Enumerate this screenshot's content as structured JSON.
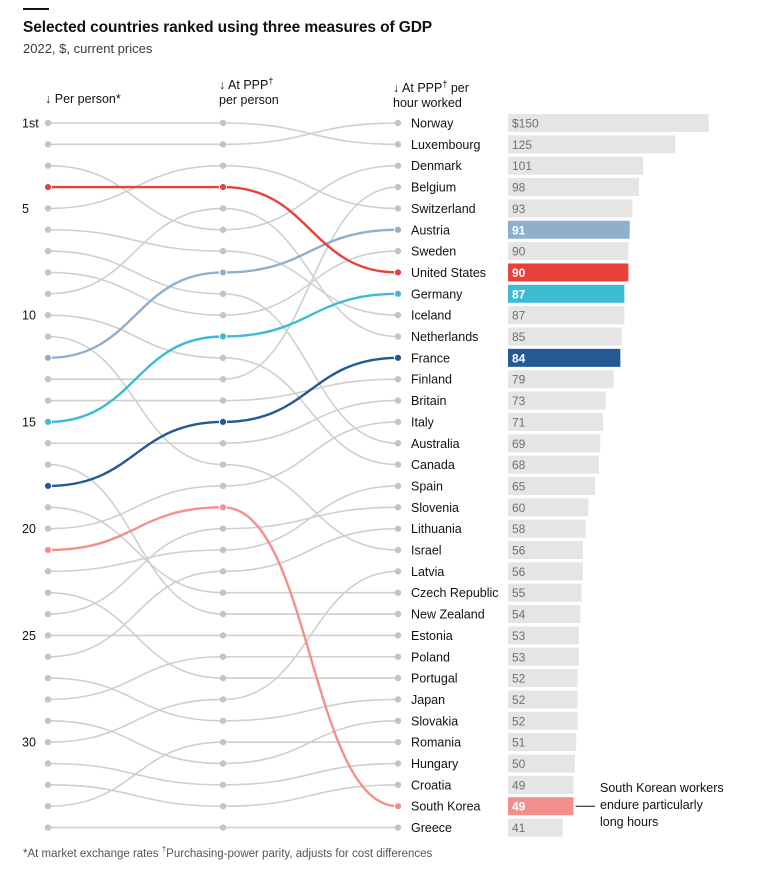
{
  "title": "Selected countries ranked using three measures of GDP",
  "subtitle": "2022, $, current prices",
  "columns": {
    "col1": {
      "arrow": "↓",
      "label": "Per person",
      "mark": "*"
    },
    "col2": {
      "arrow": "↓",
      "label1": "At PPP",
      "mark": "†",
      "label2": "per person"
    },
    "col3": {
      "arrow": "↓",
      "label1": "At PPP",
      "mark": "†",
      "label1b": " per",
      "label2": "hour worked"
    }
  },
  "footnote": {
    "a": "*At market exchange rates ",
    "mark": "†",
    "b": "Purchasing-power parity, adjusts for cost differences"
  },
  "annotation": {
    "line1": "South Korean workers",
    "line2": "endure particularly",
    "line3": "long hours"
  },
  "colors": {
    "grey_line": "#cfcfcf",
    "grey_dot": "#c4c4c4",
    "grey_bar": "#e5e5e5",
    "bar_text": "#707070",
    "red": "#e8413c",
    "light_blue": "#8fb0cd",
    "cyan": "#3ebbd2",
    "dark_blue": "#245994",
    "pink": "#f4908b"
  },
  "chart_data": {
    "type": "slope-rank",
    "title": "Selected countries ranked using three measures of GDP",
    "rank_tick_labels": [
      "1st",
      "5",
      "10",
      "15",
      "20",
      "25",
      "30"
    ],
    "rank_ticks": [
      1,
      5,
      10,
      15,
      20,
      25,
      30
    ],
    "bar_series_name": "GDP at PPP per hour worked ($)",
    "bar_max": 160,
    "first_value_prefix": "$",
    "countries": [
      {
        "name": "Norway",
        "rank_per_person": 2,
        "rank_ppp_per_person": 2,
        "rank_ppp_per_hour": 1,
        "value_ppp_per_hour": 150
      },
      {
        "name": "Luxembourg",
        "rank_per_person": 1,
        "rank_ppp_per_person": 1,
        "rank_ppp_per_hour": 2,
        "value_ppp_per_hour": 125
      },
      {
        "name": "Denmark",
        "rank_per_person": 3,
        "rank_ppp_per_person": 6,
        "rank_ppp_per_hour": 3,
        "value_ppp_per_hour": 101
      },
      {
        "name": "Belgium",
        "rank_per_person": 13,
        "rank_ppp_per_person": 13,
        "rank_ppp_per_hour": 4,
        "value_ppp_per_hour": 98
      },
      {
        "name": "Switzerland",
        "rank_per_person": 5,
        "rank_ppp_per_person": 3,
        "rank_ppp_per_hour": 5,
        "value_ppp_per_hour": 93
      },
      {
        "name": "Austria",
        "rank_per_person": 12,
        "rank_ppp_per_person": 8,
        "rank_ppp_per_hour": 6,
        "value_ppp_per_hour": 91,
        "highlight": "light_blue"
      },
      {
        "name": "Sweden",
        "rank_per_person": 8,
        "rank_ppp_per_person": 10,
        "rank_ppp_per_hour": 7,
        "value_ppp_per_hour": 90
      },
      {
        "name": "United States",
        "rank_per_person": 4,
        "rank_ppp_per_person": 4,
        "rank_ppp_per_hour": 8,
        "value_ppp_per_hour": 90,
        "highlight": "red"
      },
      {
        "name": "Germany",
        "rank_per_person": 15,
        "rank_ppp_per_person": 11,
        "rank_ppp_per_hour": 9,
        "value_ppp_per_hour": 87,
        "highlight": "cyan"
      },
      {
        "name": "Iceland",
        "rank_per_person": 6,
        "rank_ppp_per_person": 7,
        "rank_ppp_per_hour": 10,
        "value_ppp_per_hour": 87
      },
      {
        "name": "Netherlands",
        "rank_per_person": 9,
        "rank_ppp_per_person": 5,
        "rank_ppp_per_hour": 11,
        "value_ppp_per_hour": 85
      },
      {
        "name": "France",
        "rank_per_person": 18,
        "rank_ppp_per_person": 15,
        "rank_ppp_per_hour": 12,
        "value_ppp_per_hour": 84,
        "highlight": "dark_blue"
      },
      {
        "name": "Finland",
        "rank_per_person": 14,
        "rank_ppp_per_person": 14,
        "rank_ppp_per_hour": 13,
        "value_ppp_per_hour": 79
      },
      {
        "name": "Britain",
        "rank_per_person": 16,
        "rank_ppp_per_person": 16,
        "rank_ppp_per_hour": 14,
        "value_ppp_per_hour": 73
      },
      {
        "name": "Italy",
        "rank_per_person": 20,
        "rank_ppp_per_person": 18,
        "rank_ppp_per_hour": 15,
        "value_ppp_per_hour": 71
      },
      {
        "name": "Australia",
        "rank_per_person": 7,
        "rank_ppp_per_person": 9,
        "rank_ppp_per_hour": 16,
        "value_ppp_per_hour": 69
      },
      {
        "name": "Canada",
        "rank_per_person": 10,
        "rank_ppp_per_person": 12,
        "rank_ppp_per_hour": 17,
        "value_ppp_per_hour": 68
      },
      {
        "name": "Spain",
        "rank_per_person": 22,
        "rank_ppp_per_person": 21,
        "rank_ppp_per_hour": 18,
        "value_ppp_per_hour": 65
      },
      {
        "name": "Slovenia",
        "rank_per_person": 24,
        "rank_ppp_per_person": 20,
        "rank_ppp_per_hour": 19,
        "value_ppp_per_hour": 60
      },
      {
        "name": "Lithuania",
        "rank_per_person": 26,
        "rank_ppp_per_person": 22,
        "rank_ppp_per_hour": 20,
        "value_ppp_per_hour": 58
      },
      {
        "name": "Israel",
        "rank_per_person": 11,
        "rank_ppp_per_person": 17,
        "rank_ppp_per_hour": 21,
        "value_ppp_per_hour": 56
      },
      {
        "name": "Latvia",
        "rank_per_person": 30,
        "rank_ppp_per_person": 28,
        "rank_ppp_per_hour": 22,
        "value_ppp_per_hour": 56
      },
      {
        "name": "Czech Republic",
        "rank_per_person": 19,
        "rank_ppp_per_person": 23,
        "rank_ppp_per_hour": 23,
        "value_ppp_per_hour": 55
      },
      {
        "name": "New Zealand",
        "rank_per_person": 17,
        "rank_ppp_per_person": 24,
        "rank_ppp_per_hour": 24,
        "value_ppp_per_hour": 54
      },
      {
        "name": "Estonia",
        "rank_per_person": 25,
        "rank_ppp_per_person": 25,
        "rank_ppp_per_hour": 25,
        "value_ppp_per_hour": 53
      },
      {
        "name": "Poland",
        "rank_per_person": 28,
        "rank_ppp_per_person": 26,
        "rank_ppp_per_hour": 26,
        "value_ppp_per_hour": 53
      },
      {
        "name": "Portugal",
        "rank_per_person": 23,
        "rank_ppp_per_person": 27,
        "rank_ppp_per_hour": 27,
        "value_ppp_per_hour": 52
      },
      {
        "name": "Japan",
        "rank_per_person": 27,
        "rank_ppp_per_person": 29,
        "rank_ppp_per_hour": 28,
        "value_ppp_per_hour": 52
      },
      {
        "name": "Slovakia",
        "rank_per_person": 29,
        "rank_ppp_per_person": 31,
        "rank_ppp_per_hour": 29,
        "value_ppp_per_hour": 52
      },
      {
        "name": "Romania",
        "rank_per_person": 33,
        "rank_ppp_per_person": 30,
        "rank_ppp_per_hour": 30,
        "value_ppp_per_hour": 51
      },
      {
        "name": "Hungary",
        "rank_per_person": 31,
        "rank_ppp_per_person": 32,
        "rank_ppp_per_hour": 31,
        "value_ppp_per_hour": 50
      },
      {
        "name": "Croatia",
        "rank_per_person": 32,
        "rank_ppp_per_person": 33,
        "rank_ppp_per_hour": 32,
        "value_ppp_per_hour": 49
      },
      {
        "name": "South Korea",
        "rank_per_person": 21,
        "rank_ppp_per_person": 19,
        "rank_ppp_per_hour": 33,
        "value_ppp_per_hour": 49,
        "highlight": "pink"
      },
      {
        "name": "Greece",
        "rank_per_person": 34,
        "rank_ppp_per_person": 34,
        "rank_ppp_per_hour": 34,
        "value_ppp_per_hour": 41
      }
    ]
  }
}
